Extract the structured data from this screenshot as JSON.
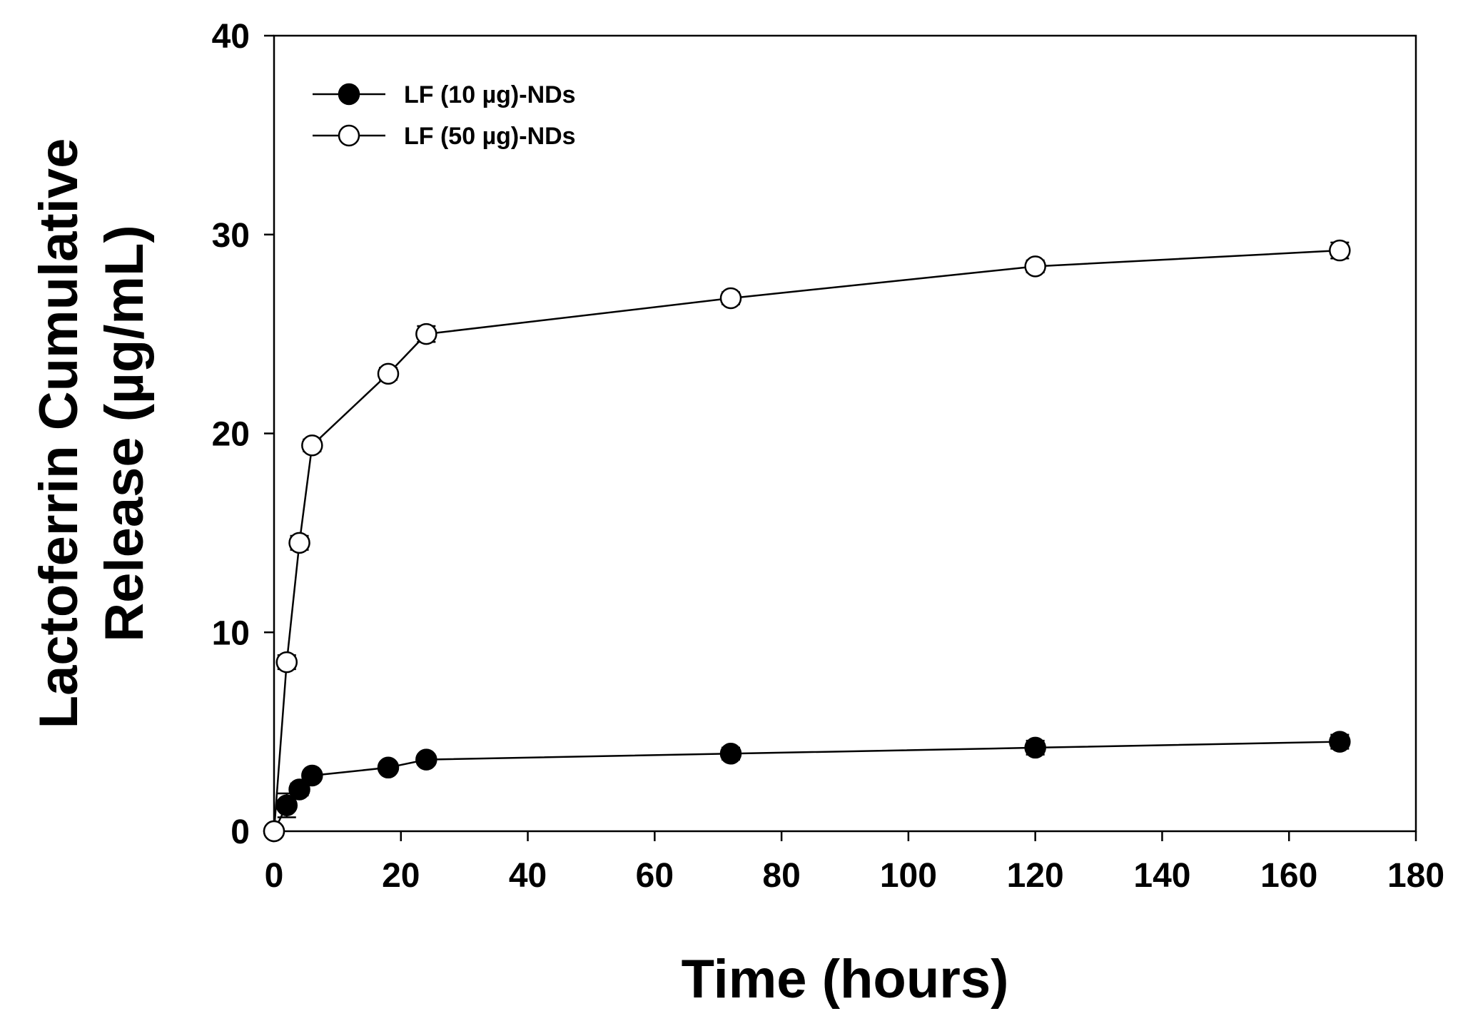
{
  "chart_data": {
    "type": "line",
    "xlabel": "Time (hours)",
    "ylabel_lines": [
      "Lactoferrin Cumulative",
      "Release (µg/mL)"
    ],
    "xlim": [
      0,
      180
    ],
    "ylim": [
      0,
      40
    ],
    "xticks": [
      0,
      20,
      40,
      60,
      80,
      100,
      120,
      140,
      160,
      180
    ],
    "yticks": [
      0,
      10,
      20,
      30,
      40
    ],
    "grid": false,
    "legend_position": "top-left",
    "x": [
      0,
      2,
      4,
      6,
      18,
      24,
      72,
      120,
      168
    ],
    "series": [
      {
        "name": "LF (10 µg)-NDs",
        "marker": "filled-circle",
        "color": "#000000",
        "values": [
          0,
          1.3,
          2.1,
          2.8,
          3.2,
          3.6,
          3.9,
          4.2,
          4.5
        ],
        "errors": [
          0,
          0.6,
          0.3,
          0.2,
          0.25,
          0.25,
          0.3,
          0.35,
          0.35
        ]
      },
      {
        "name": "LF (50 µg)-NDs",
        "marker": "open-circle",
        "color": "#000000",
        "values": [
          0,
          8.5,
          14.5,
          19.4,
          23.0,
          25.0,
          26.8,
          28.4,
          29.2
        ],
        "errors": [
          0,
          0.35,
          0.35,
          0.3,
          0.3,
          0.4,
          0.3,
          0.3,
          0.4
        ]
      }
    ]
  }
}
